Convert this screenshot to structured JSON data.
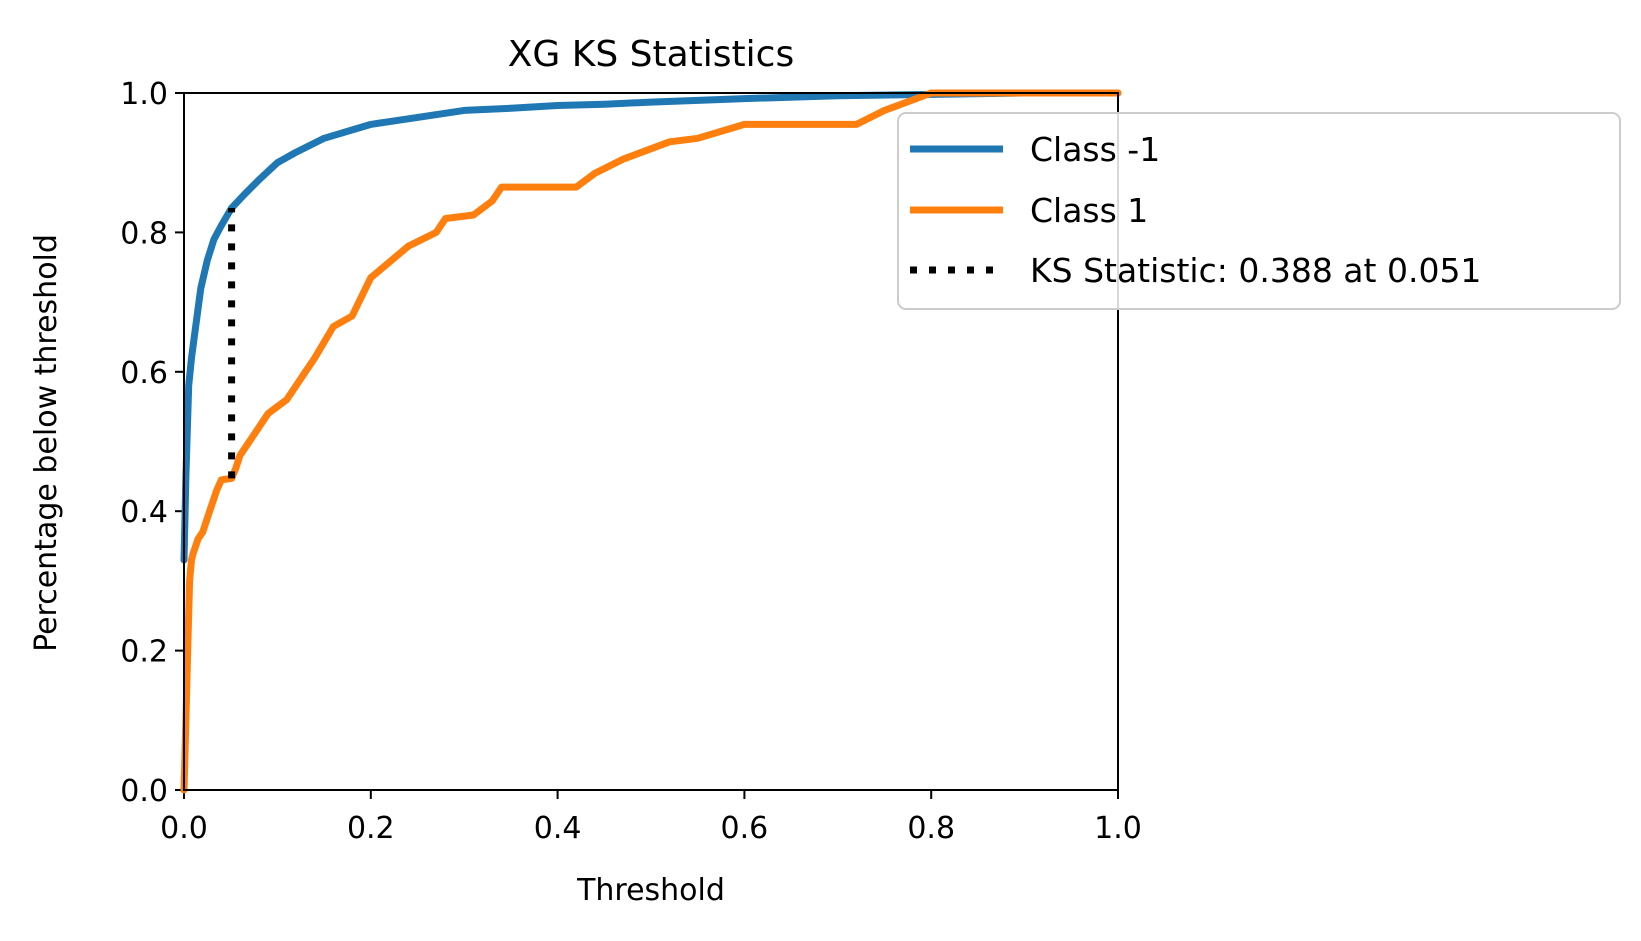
{
  "chart_data": {
    "type": "line",
    "title": "XG KS Statistics",
    "xlabel": "Threshold",
    "ylabel": "Percentage below threshold",
    "xlim": [
      0.0,
      1.0
    ],
    "ylim": [
      0.0,
      1.0
    ],
    "x_ticks": [
      "0.0",
      "0.2",
      "0.4",
      "0.6",
      "0.8",
      "1.0"
    ],
    "y_ticks": [
      "0.0",
      "0.2",
      "0.4",
      "0.6",
      "0.8",
      "1.0"
    ],
    "grid": false,
    "legend_position": "upper-right, extending outside the plot area",
    "series": [
      {
        "name": "Class -1",
        "color": "#1f77b4",
        "style": "solid",
        "x": [
          0.0,
          0.002,
          0.005,
          0.008,
          0.012,
          0.018,
          0.025,
          0.032,
          0.04,
          0.051,
          0.065,
          0.08,
          0.1,
          0.12,
          0.15,
          0.2,
          0.25,
          0.3,
          0.35,
          0.4,
          0.45,
          0.5,
          0.6,
          0.7,
          0.8,
          0.9,
          1.0
        ],
        "y": [
          0.33,
          0.45,
          0.58,
          0.62,
          0.66,
          0.72,
          0.76,
          0.79,
          0.81,
          0.835,
          0.855,
          0.875,
          0.9,
          0.915,
          0.935,
          0.955,
          0.965,
          0.975,
          0.978,
          0.982,
          0.984,
          0.987,
          0.992,
          0.996,
          0.998,
          1.0,
          1.0
        ]
      },
      {
        "name": "Class 1",
        "color": "#ff7f0e",
        "style": "solid",
        "x": [
          0.0,
          0.002,
          0.004,
          0.006,
          0.008,
          0.01,
          0.015,
          0.02,
          0.025,
          0.03,
          0.035,
          0.04,
          0.051,
          0.055,
          0.06,
          0.07,
          0.08,
          0.09,
          0.1,
          0.11,
          0.12,
          0.13,
          0.14,
          0.16,
          0.18,
          0.2,
          0.24,
          0.27,
          0.28,
          0.31,
          0.33,
          0.34,
          0.42,
          0.44,
          0.47,
          0.49,
          0.52,
          0.55,
          0.6,
          0.72,
          0.75,
          0.77,
          0.8,
          1.0
        ],
        "y": [
          0.0,
          0.1,
          0.2,
          0.3,
          0.33,
          0.34,
          0.36,
          0.37,
          0.39,
          0.41,
          0.43,
          0.445,
          0.447,
          0.46,
          0.48,
          0.5,
          0.52,
          0.54,
          0.55,
          0.56,
          0.58,
          0.6,
          0.62,
          0.665,
          0.68,
          0.735,
          0.78,
          0.8,
          0.82,
          0.825,
          0.845,
          0.865,
          0.865,
          0.885,
          0.905,
          0.915,
          0.93,
          0.935,
          0.955,
          0.955,
          0.975,
          0.985,
          1.0,
          1.0
        ]
      },
      {
        "name": "KS Statistic: 0.388 at 0.051",
        "color": "#000000",
        "style": "dotted",
        "x": [
          0.051,
          0.051
        ],
        "y": [
          0.447,
          0.835
        ]
      }
    ]
  }
}
